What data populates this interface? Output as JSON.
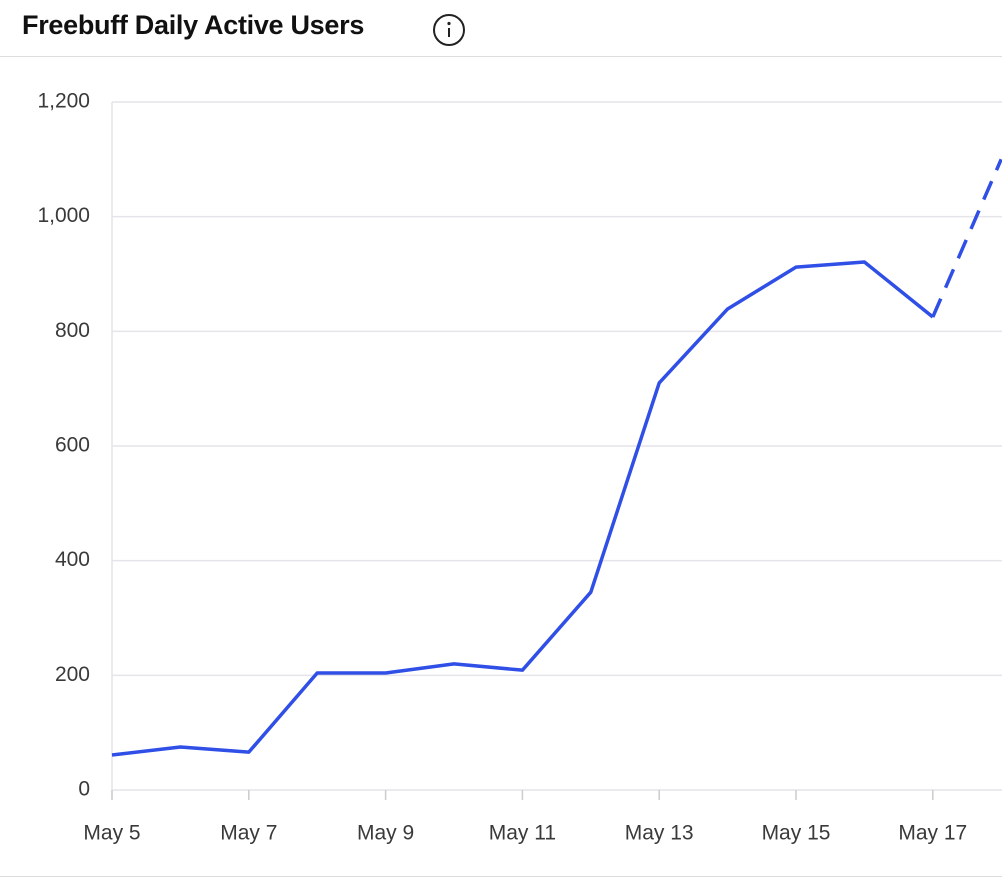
{
  "chart_data": {
    "type": "line",
    "title": "Freebuff Daily Active Users",
    "categories": [
      "May 5",
      null,
      "May 7",
      null,
      "May 9",
      null,
      "May 11",
      null,
      "May 13",
      null,
      "May 15",
      null,
      "May 17",
      null
    ],
    "series": [
      {
        "color": "#2f4fe6",
        "values": [
          61,
          75,
          66,
          204,
          204,
          220,
          209,
          345,
          710,
          839,
          912,
          921,
          825,
          1100
        ]
      }
    ],
    "partial_last_point": true,
    "ylim": [
      0,
      1200
    ],
    "yticks": [
      0,
      200,
      400,
      600,
      800,
      {
        "value": 1000,
        "label": "1,000"
      },
      {
        "value": 1200,
        "label": "1,200"
      }
    ],
    "grid": true
  }
}
